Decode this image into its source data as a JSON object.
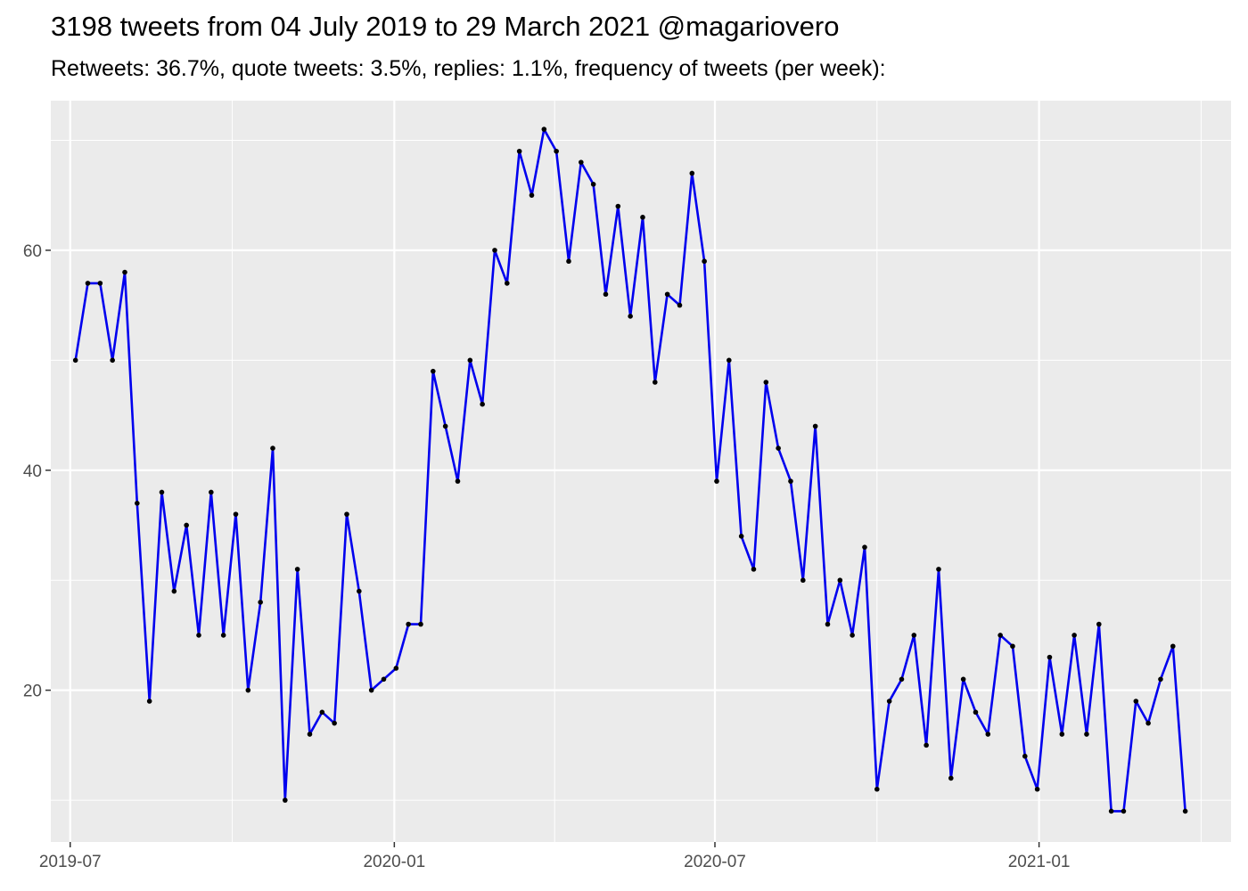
{
  "chart_data": {
    "type": "line",
    "title": "3198 tweets from 04 July 2019 to 29 March 2021 @magariovero",
    "subtitle": "Retweets: 36.7%, quote tweets: 3.5%, replies: 1.1%, frequency of tweets (per week):",
    "xlabel": "",
    "ylabel": "",
    "x_ticks": [
      "2019-07",
      "2020-01",
      "2020-07",
      "2021-01"
    ],
    "y_ticks": [
      20,
      40,
      60
    ],
    "xlim": [
      "2019-06-20",
      "2021-04-20"
    ],
    "ylim": [
      6.2,
      73.6
    ],
    "grid": true,
    "colors": {
      "line": "#0000ee",
      "point": "#000000",
      "panel": "#ebebeb",
      "grid": "#ffffff"
    },
    "series": [
      {
        "x": [
          "2019-07-04",
          "2019-07-11",
          "2019-07-18",
          "2019-07-25",
          "2019-08-01",
          "2019-08-08",
          "2019-08-15",
          "2019-08-22",
          "2019-08-29",
          "2019-09-05",
          "2019-09-12",
          "2019-09-19",
          "2019-09-26",
          "2019-10-03",
          "2019-10-10",
          "2019-10-17",
          "2019-10-24",
          "2019-10-31",
          "2019-11-07",
          "2019-11-14",
          "2019-11-21",
          "2019-11-28",
          "2019-12-05",
          "2019-12-12",
          "2019-12-19",
          "2019-12-26",
          "2020-01-02",
          "2020-01-09",
          "2020-01-16",
          "2020-01-23",
          "2020-01-30",
          "2020-02-06",
          "2020-02-13",
          "2020-02-20",
          "2020-02-27",
          "2020-03-05",
          "2020-03-12",
          "2020-03-19",
          "2020-03-26",
          "2020-04-02",
          "2020-04-09",
          "2020-04-16",
          "2020-04-23",
          "2020-04-30",
          "2020-05-07",
          "2020-05-14",
          "2020-05-21",
          "2020-05-28",
          "2020-06-04",
          "2020-06-11",
          "2020-06-18",
          "2020-06-25",
          "2020-07-02",
          "2020-07-09",
          "2020-07-16",
          "2020-07-23",
          "2020-07-30",
          "2020-08-06",
          "2020-08-13",
          "2020-08-20",
          "2020-08-27",
          "2020-09-03",
          "2020-09-10",
          "2020-09-17",
          "2020-09-24",
          "2020-10-01",
          "2020-10-08",
          "2020-10-15",
          "2020-10-22",
          "2020-10-29",
          "2020-11-05",
          "2020-11-12",
          "2020-11-19",
          "2020-11-26",
          "2020-12-03",
          "2020-12-10",
          "2020-12-17",
          "2020-12-24",
          "2020-12-31",
          "2021-01-07",
          "2021-01-14",
          "2021-01-21",
          "2021-01-28",
          "2021-02-04",
          "2021-02-11",
          "2021-02-18",
          "2021-02-25",
          "2021-03-04",
          "2021-03-11",
          "2021-03-18",
          "2021-03-25"
        ],
        "y": [
          50,
          57,
          57,
          50,
          58,
          37,
          19,
          38,
          29,
          35,
          25,
          38,
          25,
          36,
          20,
          28,
          42,
          10,
          31,
          16,
          18,
          17,
          36,
          29,
          20,
          21,
          22,
          26,
          26,
          49,
          44,
          39,
          50,
          46,
          60,
          57,
          69,
          65,
          71,
          69,
          59,
          68,
          66,
          56,
          64,
          54,
          63,
          48,
          56,
          55,
          67,
          59,
          39,
          50,
          34,
          31,
          48,
          42,
          39,
          30,
          44,
          26,
          30,
          25,
          33,
          11,
          19,
          21,
          25,
          15,
          31,
          12,
          21,
          18,
          16,
          25,
          24,
          14,
          11,
          23,
          16,
          25,
          16,
          26,
          9,
          9,
          19,
          17,
          21,
          24,
          9
        ]
      }
    ]
  }
}
